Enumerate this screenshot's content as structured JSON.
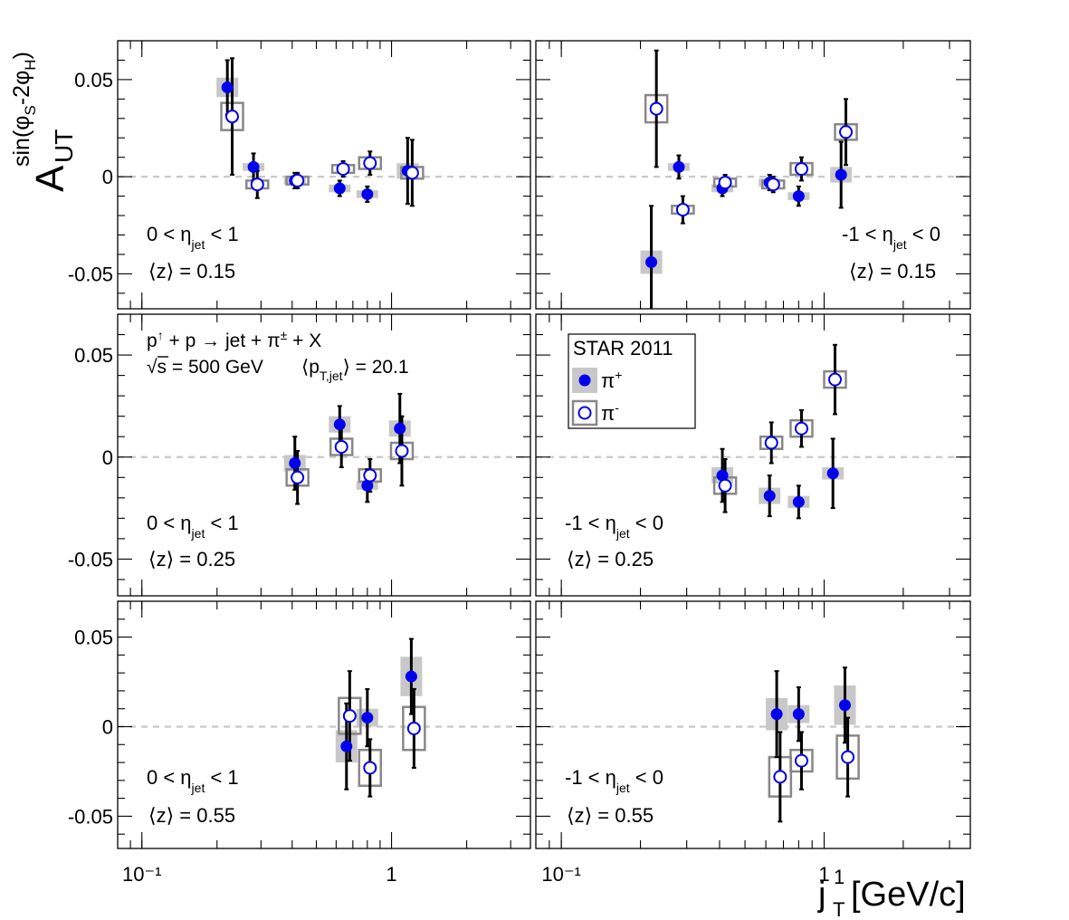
{
  "chart_data": {
    "type": "scatter",
    "xlabel": {
      "main": "j",
      "sub": "T",
      "sup": "1",
      "unit": "[GeV/c]"
    },
    "ylabel": {
      "main": "A",
      "sub": "UT",
      "sup_head": "sin(φ",
      "sup_sub1": "S",
      "sup_mid": "-2φ",
      "sup_sub2": "H",
      "sup_tail": ")"
    },
    "x_scale": "log",
    "xlim": [
      0.08,
      3.6
    ],
    "ylim": [
      -0.068,
      0.07
    ],
    "x_tick_labels": {
      "0.1": "10⁻¹",
      "1": "1"
    },
    "y_tick_labels": [
      {
        "value": 0.05,
        "label": "0.05"
      },
      {
        "value": 0,
        "label": "0"
      },
      {
        "value": -0.05,
        "label": "-0.05"
      }
    ],
    "legend": {
      "title": "STAR 2011",
      "entries": [
        {
          "series": "pi_plus",
          "label": "π",
          "sup": "+"
        },
        {
          "series": "pi_minus",
          "label": "π",
          "sup": "-"
        }
      ]
    },
    "process": {
      "line1": {
        "p1": "p",
        "arrow": "↑",
        "rest": " + p → jet + π",
        "pm": "±",
        "tail": " + X"
      },
      "line2": {
        "root": "√",
        "s": "s = 500 GeV",
        "pt_open": "⟨p",
        "pt_sub": "T,jet",
        "pt_close": "⟩ = 20.1"
      }
    },
    "colors": {
      "pi_plus": "#0000ee",
      "pi_minus": "#0000ee",
      "sys_box_plus": "#c8c8c8",
      "sys_box_minus": "#888888",
      "zero_line": "#c8c8c8"
    },
    "panels": [
      {
        "row": 0,
        "col": 0,
        "eta": {
          "a": "0 < η",
          "sub": "jet",
          "b": " < 1"
        },
        "z": "⟨z⟩ = 0.15",
        "pi_plus": [
          {
            "x": 0.22,
            "y": 0.046,
            "err": 0.014,
            "sys": 0.005
          },
          {
            "x": 0.28,
            "y": 0.005,
            "err": 0.007,
            "sys": 0.002
          },
          {
            "x": 0.41,
            "y": -0.002,
            "err": 0.004,
            "sys": 0.002
          },
          {
            "x": 0.62,
            "y": -0.006,
            "err": 0.004,
            "sys": 0.002
          },
          {
            "x": 0.8,
            "y": -0.009,
            "err": 0.004,
            "sys": 0.002
          },
          {
            "x": 1.16,
            "y": 0.003,
            "err": 0.017,
            "sys": 0.004
          }
        ],
        "pi_minus": [
          {
            "x": 0.23,
            "y": 0.031,
            "err": 0.03,
            "sys": 0.007
          },
          {
            "x": 0.29,
            "y": -0.004,
            "err": 0.007,
            "sys": 0.002
          },
          {
            "x": 0.42,
            "y": -0.002,
            "err": 0.004,
            "sys": 0.002
          },
          {
            "x": 0.64,
            "y": 0.004,
            "err": 0.004,
            "sys": 0.002
          },
          {
            "x": 0.82,
            "y": 0.007,
            "err": 0.006,
            "sys": 0.003
          },
          {
            "x": 1.21,
            "y": 0.002,
            "err": 0.017,
            "sys": 0.003
          }
        ]
      },
      {
        "row": 0,
        "col": 1,
        "eta": {
          "a": "-1 < η",
          "sub": "jet",
          "b": " < 0"
        },
        "z": "⟨z⟩ = 0.15",
        "pi_plus": [
          {
            "x": 0.22,
            "y": -0.044,
            "err": 0.029,
            "sys": 0.006
          },
          {
            "x": 0.28,
            "y": 0.005,
            "err": 0.006,
            "sys": 0.002
          },
          {
            "x": 0.41,
            "y": -0.006,
            "err": 0.004,
            "sys": 0.002
          },
          {
            "x": 0.62,
            "y": -0.003,
            "err": 0.004,
            "sys": 0.002
          },
          {
            "x": 0.8,
            "y": -0.01,
            "err": 0.005,
            "sys": 0.002
          },
          {
            "x": 1.16,
            "y": 0.001,
            "err": 0.017,
            "sys": 0.004
          }
        ],
        "pi_minus": [
          {
            "x": 0.23,
            "y": 0.035,
            "err": 0.03,
            "sys": 0.007
          },
          {
            "x": 0.29,
            "y": -0.017,
            "err": 0.007,
            "sys": 0.002
          },
          {
            "x": 0.42,
            "y": -0.003,
            "err": 0.004,
            "sys": 0.002
          },
          {
            "x": 0.64,
            "y": -0.004,
            "err": 0.004,
            "sys": 0.002
          },
          {
            "x": 0.82,
            "y": 0.004,
            "err": 0.006,
            "sys": 0.003
          },
          {
            "x": 1.21,
            "y": 0.023,
            "err": 0.017,
            "sys": 0.004
          }
        ]
      },
      {
        "row": 1,
        "col": 0,
        "eta": {
          "a": "0 < η",
          "sub": "jet",
          "b": " < 1"
        },
        "z": "⟨z⟩ = 0.25",
        "pi_plus": [
          {
            "x": 0.41,
            "y": -0.003,
            "err": 0.013,
            "sys": 0.004
          },
          {
            "x": 0.62,
            "y": 0.016,
            "err": 0.009,
            "sys": 0.004
          },
          {
            "x": 0.8,
            "y": -0.014,
            "err": 0.008,
            "sys": 0.002
          },
          {
            "x": 1.08,
            "y": 0.014,
            "err": 0.017,
            "sys": 0.004
          }
        ],
        "pi_minus": [
          {
            "x": 0.42,
            "y": -0.01,
            "err": 0.013,
            "sys": 0.004
          },
          {
            "x": 0.63,
            "y": 0.005,
            "err": 0.01,
            "sys": 0.004
          },
          {
            "x": 0.82,
            "y": -0.009,
            "err": 0.008,
            "sys": 0.003
          },
          {
            "x": 1.1,
            "y": 0.003,
            "err": 0.017,
            "sys": 0.004
          }
        ]
      },
      {
        "row": 1,
        "col": 1,
        "eta": {
          "a": "-1 < η",
          "sub": "jet",
          "b": " < 0"
        },
        "z": "⟨z⟩ = 0.25",
        "pi_plus": [
          {
            "x": 0.41,
            "y": -0.009,
            "err": 0.013,
            "sys": 0.004
          },
          {
            "x": 0.62,
            "y": -0.019,
            "err": 0.01,
            "sys": 0.004
          },
          {
            "x": 0.8,
            "y": -0.022,
            "err": 0.008,
            "sys": 0.003
          },
          {
            "x": 1.08,
            "y": -0.008,
            "err": 0.017,
            "sys": 0.003
          }
        ],
        "pi_minus": [
          {
            "x": 0.42,
            "y": -0.014,
            "err": 0.013,
            "sys": 0.004
          },
          {
            "x": 0.63,
            "y": 0.007,
            "err": 0.01,
            "sys": 0.003
          },
          {
            "x": 0.82,
            "y": 0.014,
            "err": 0.009,
            "sys": 0.004
          },
          {
            "x": 1.1,
            "y": 0.038,
            "err": 0.017,
            "sys": 0.004
          }
        ]
      },
      {
        "row": 2,
        "col": 0,
        "eta": {
          "a": "0 < η",
          "sub": "jet",
          "b": " < 1"
        },
        "z": "⟨z⟩ = 0.55",
        "pi_plus": [
          {
            "x": 0.66,
            "y": -0.011,
            "err": 0.024,
            "sys": 0.009
          },
          {
            "x": 0.8,
            "y": 0.005,
            "err": 0.016,
            "sys": 0.005
          },
          {
            "x": 1.2,
            "y": 0.028,
            "err": 0.021,
            "sys": 0.011
          }
        ],
        "pi_minus": [
          {
            "x": 0.68,
            "y": 0.006,
            "err": 0.025,
            "sys": 0.01
          },
          {
            "x": 0.82,
            "y": -0.023,
            "err": 0.016,
            "sys": 0.01
          },
          {
            "x": 1.23,
            "y": -0.001,
            "err": 0.022,
            "sys": 0.012
          }
        ]
      },
      {
        "row": 2,
        "col": 1,
        "eta": {
          "a": "-1 < η",
          "sub": "jet",
          "b": " < 0"
        },
        "z": "⟨z⟩ = 0.55",
        "pi_plus": [
          {
            "x": 0.66,
            "y": 0.007,
            "err": 0.024,
            "sys": 0.009
          },
          {
            "x": 0.8,
            "y": 0.007,
            "err": 0.015,
            "sys": 0.005
          },
          {
            "x": 1.2,
            "y": 0.012,
            "err": 0.021,
            "sys": 0.011
          }
        ],
        "pi_minus": [
          {
            "x": 0.68,
            "y": -0.028,
            "err": 0.025,
            "sys": 0.011
          },
          {
            "x": 0.82,
            "y": -0.019,
            "err": 0.016,
            "sys": 0.006
          },
          {
            "x": 1.23,
            "y": -0.017,
            "err": 0.022,
            "sys": 0.012
          }
        ]
      }
    ]
  }
}
